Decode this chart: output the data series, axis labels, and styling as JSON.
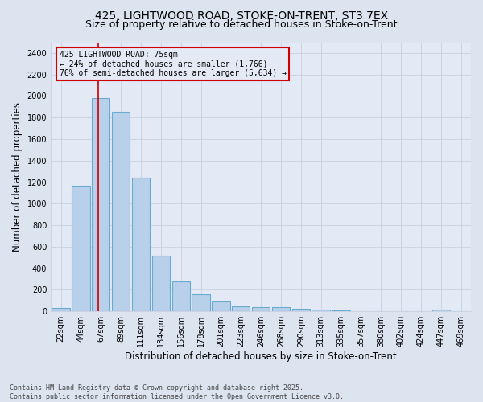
{
  "title_line1": "425, LIGHTWOOD ROAD, STOKE-ON-TRENT, ST3 7EX",
  "title_line2": "Size of property relative to detached houses in Stoke-on-Trent",
  "xlabel": "Distribution of detached houses by size in Stoke-on-Trent",
  "ylabel": "Number of detached properties",
  "categories": [
    "22sqm",
    "44sqm",
    "67sqm",
    "89sqm",
    "111sqm",
    "134sqm",
    "156sqm",
    "178sqm",
    "201sqm",
    "223sqm",
    "246sqm",
    "268sqm",
    "290sqm",
    "313sqm",
    "335sqm",
    "357sqm",
    "380sqm",
    "402sqm",
    "424sqm",
    "447sqm",
    "469sqm"
  ],
  "values": [
    30,
    1170,
    1980,
    1855,
    1240,
    515,
    275,
    155,
    90,
    50,
    40,
    40,
    25,
    20,
    10,
    5,
    5,
    5,
    5,
    15,
    5
  ],
  "bar_color": "#b8d0ea",
  "bar_edge_color": "#6aabd2",
  "grid_color": "#c8d0e0",
  "background_color": "#dce4f0",
  "plot_bg_color": "#e4eaf5",
  "annotation_text": "425 LIGHTWOOD ROAD: 75sqm\n← 24% of detached houses are smaller (1,766)\n76% of semi-detached houses are larger (5,634) →",
  "vline_color": "#cc0000",
  "annotation_box_color": "#cc0000",
  "ylim": [
    0,
    2500
  ],
  "yticks": [
    0,
    200,
    400,
    600,
    800,
    1000,
    1200,
    1400,
    1600,
    1800,
    2000,
    2200,
    2400
  ],
  "footnote": "Contains HM Land Registry data © Crown copyright and database right 2025.\nContains public sector information licensed under the Open Government Licence v3.0.",
  "title_fontsize": 10,
  "subtitle_fontsize": 9,
  "label_fontsize": 8.5,
  "tick_fontsize": 7,
  "annotation_fontsize": 7,
  "footnote_fontsize": 6
}
